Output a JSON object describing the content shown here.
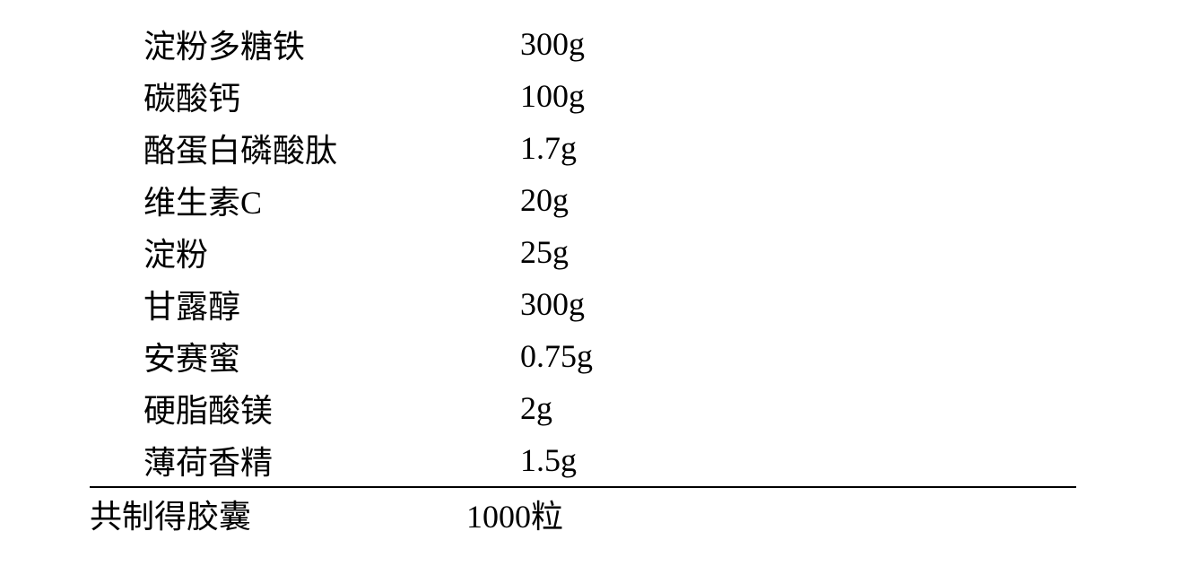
{
  "table": {
    "rows": [
      {
        "label": "淀粉多糖铁",
        "value": "300g"
      },
      {
        "label": "碳酸钙",
        "value": "100g"
      },
      {
        "label": "酪蛋白磷酸肽",
        "value": "1.7g"
      },
      {
        "label": "维生素C",
        "value": " 20g"
      },
      {
        "label": "淀粉",
        "value": " 25g"
      },
      {
        "label": "甘露醇",
        "value": "300g"
      },
      {
        "label": "安赛蜜",
        "value": "0.75g"
      },
      {
        "label": "硬脂酸镁",
        "value": "  2g"
      },
      {
        "label": "薄荷香精",
        "value": "1.5g"
      }
    ],
    "footer": {
      "label": "共制得胶囊",
      "value": "1000粒"
    }
  },
  "style": {
    "font_family": "SimSun",
    "font_size": 36,
    "text_color": "#000000",
    "background_color": "#ffffff",
    "border_color": "#000000",
    "border_width": 2
  }
}
